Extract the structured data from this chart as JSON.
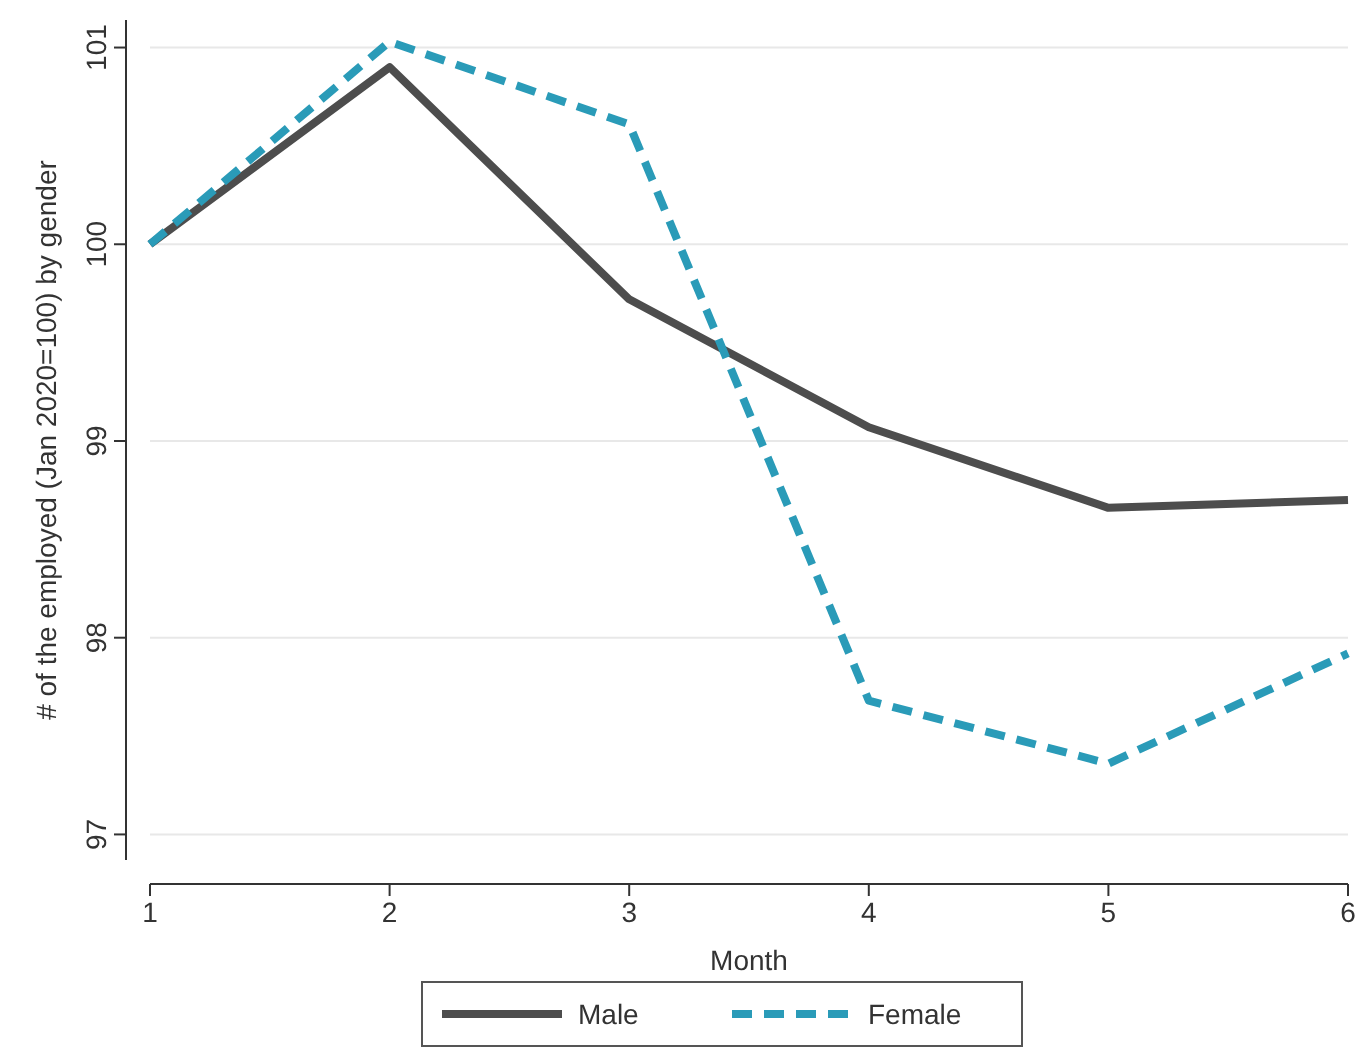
{
  "chart_data": {
    "type": "line",
    "xlabel": "Month",
    "ylabel": "# of the employed (Jan 2020=100) by gender",
    "x": [
      1,
      2,
      3,
      4,
      5,
      6
    ],
    "series": [
      {
        "name": "Male",
        "color": "#4d4d4d",
        "line_style": "solid",
        "values": [
          100,
          100.9,
          99.72,
          99.07,
          98.66,
          98.7
        ]
      },
      {
        "name": "Female",
        "color": "#2a9bb8",
        "line_style": "dashed",
        "values": [
          100,
          101.03,
          100.61,
          97.68,
          97.36,
          97.92
        ]
      }
    ],
    "xlim": [
      1,
      6
    ],
    "xticks": [
      1,
      2,
      3,
      4,
      5,
      6
    ],
    "ylim": [
      96.87,
      101.14
    ],
    "yticks": [
      97,
      98,
      99,
      100,
      101
    ],
    "grid": "y",
    "legend": "bottom",
    "marker": "none"
  }
}
